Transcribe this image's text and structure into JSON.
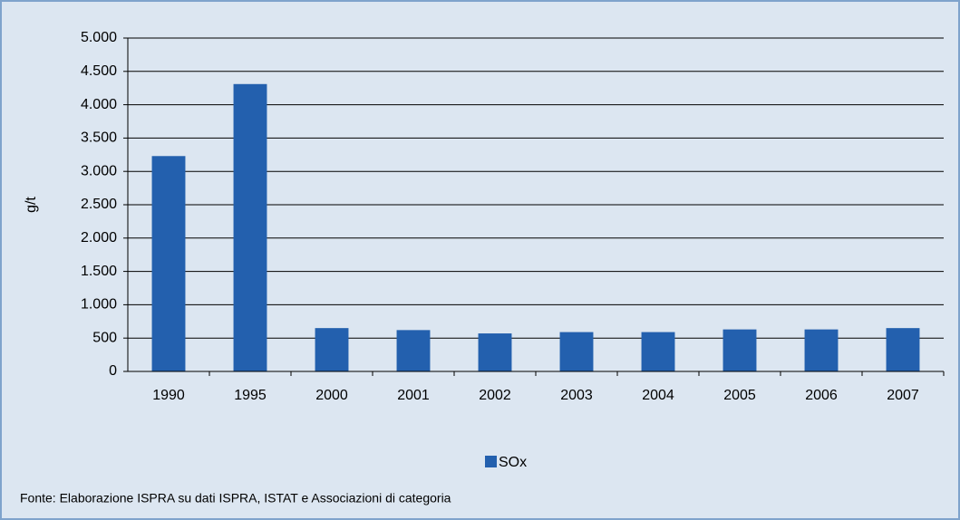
{
  "chart_data": {
    "type": "bar",
    "y_label": "g/t",
    "categories": [
      "1990",
      "1995",
      "2000",
      "2001",
      "2002",
      "2003",
      "2004",
      "2005",
      "2006",
      "2007"
    ],
    "series": [
      {
        "name": "SOx",
        "color": "#2360ae",
        "values": [
          3230,
          4310,
          650,
          620,
          570,
          590,
          590,
          630,
          630,
          650
        ]
      }
    ],
    "ylim": [
      0,
      5000
    ],
    "yticks": [
      0,
      500,
      {
        "value": 1000,
        "label": "1.000"
      },
      {
        "value": 1500,
        "label": "1.500"
      },
      {
        "value": 2000,
        "label": "2.000"
      },
      {
        "value": 2500,
        "label": "2.500"
      },
      {
        "value": 3000,
        "label": "3.000"
      },
      {
        "value": 3500,
        "label": "3.500"
      },
      {
        "value": 4000,
        "label": "4.000"
      },
      {
        "value": 4500,
        "label": "4.500"
      },
      {
        "value": 5000,
        "label": "5.000"
      }
    ],
    "grid": true,
    "legend": "bottom",
    "source": "Fonte: Elaborazione ISPRA su dati ISPRA, ISTAT e Associazioni di categoria"
  }
}
